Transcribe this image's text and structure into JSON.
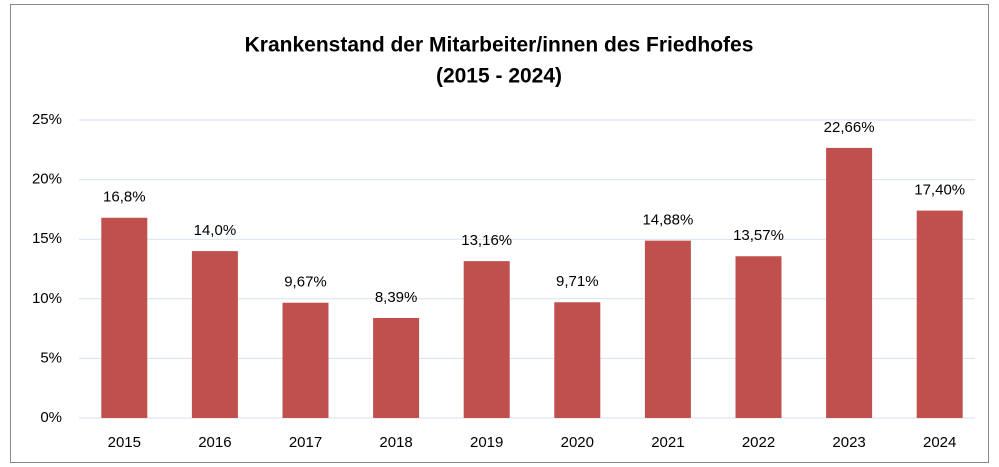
{
  "chart_data": {
    "type": "bar",
    "title": [
      "Krankenstand der Mitarbeiter/innen des Friedhofes",
      "(2015 - 2024)"
    ],
    "categories": [
      "2015",
      "2016",
      "2017",
      "2018",
      "2019",
      "2020",
      "2021",
      "2022",
      "2023",
      "2024"
    ],
    "values": [
      16.8,
      14.0,
      9.67,
      8.39,
      13.16,
      9.71,
      14.88,
      13.57,
      22.66,
      17.4
    ],
    "value_labels": [
      "16,8%",
      "14,0%",
      "9,67%",
      "8,39%",
      "13,16%",
      "9,71%",
      "14,88%",
      "13,57%",
      "22,66%",
      "17,40%"
    ],
    "color": "#c0504d",
    "ylim": [
      0,
      25
    ],
    "yticks": [
      {
        "value": 0,
        "label": "0%"
      },
      {
        "value": 5,
        "label": "5%"
      },
      {
        "value": 10,
        "label": "10%"
      },
      {
        "value": 15,
        "label": "15%"
      },
      {
        "value": 20,
        "label": "20%"
      },
      {
        "value": 25,
        "label": "25%"
      }
    ],
    "grid": true
  }
}
